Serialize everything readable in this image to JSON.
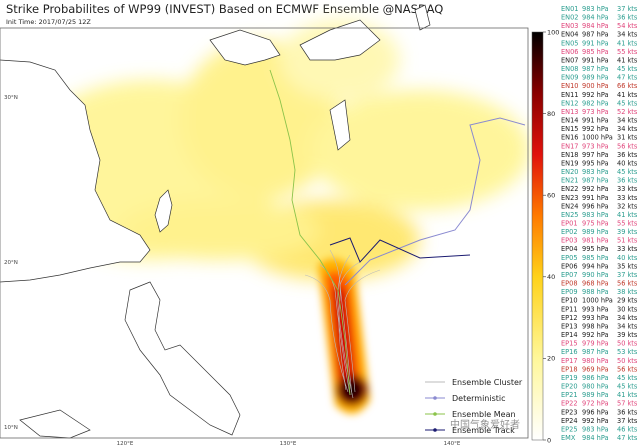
{
  "header": {
    "title": "Strike Probabilites of WP99 (INVEST) Based on ECMWF Ensemble @NASDAQ",
    "subtitle": "Init Time: 2017/07/25 12Z"
  },
  "map": {
    "lat_labels": [
      "30°N",
      "20°N",
      "10°N"
    ],
    "lon_labels": [
      "120°E",
      "130°E",
      "140°E"
    ]
  },
  "colorbar": {
    "range": [
      0,
      100
    ],
    "ticks": [
      0,
      20,
      40,
      60,
      80,
      100
    ]
  },
  "legend": [
    "Ensemble Cluster",
    "Deterministic",
    "Ensemble Mean",
    "Ensemble Track"
  ],
  "watermark": "中国气象爱好者",
  "members": [
    {
      "name": "EN01",
      "pressure": "983 hPa",
      "wind": "37 kts",
      "color": "#2a9d8f"
    },
    {
      "name": "EN02",
      "pressure": "984 hPa",
      "wind": "36 kts",
      "color": "#2a9d8f"
    },
    {
      "name": "EN03",
      "pressure": "984 hPa",
      "wind": "54 kts",
      "color": "#e0457b"
    },
    {
      "name": "EN04",
      "pressure": "987 hPa",
      "wind": "34 kts",
      "color": "#222222"
    },
    {
      "name": "EN05",
      "pressure": "991 hPa",
      "wind": "41 kts",
      "color": "#2a9d8f"
    },
    {
      "name": "EN06",
      "pressure": "985 hPa",
      "wind": "55 kts",
      "color": "#e0457b"
    },
    {
      "name": "EN07",
      "pressure": "991 hPa",
      "wind": "41 kts",
      "color": "#222222"
    },
    {
      "name": "EN08",
      "pressure": "987 hPa",
      "wind": "45 kts",
      "color": "#2a9d8f"
    },
    {
      "name": "EN09",
      "pressure": "989 hPa",
      "wind": "47 kts",
      "color": "#2a9d8f"
    },
    {
      "name": "EN10",
      "pressure": "900 hPa",
      "wind": "66 kts",
      "color": "#c0392b"
    },
    {
      "name": "EN11",
      "pressure": "992 hPa",
      "wind": "41 kts",
      "color": "#222222"
    },
    {
      "name": "EN12",
      "pressure": "982 hPa",
      "wind": "45 kts",
      "color": "#2a9d8f"
    },
    {
      "name": "EN13",
      "pressure": "973 hPa",
      "wind": "52 kts",
      "color": "#e0457b"
    },
    {
      "name": "EN14",
      "pressure": "991 hPa",
      "wind": "34 kts",
      "color": "#222222"
    },
    {
      "name": "EN15",
      "pressure": "992 hPa",
      "wind": "34 kts",
      "color": "#222222"
    },
    {
      "name": "EN16",
      "pressure": "1000 hPa",
      "wind": "31 kts",
      "color": "#222222"
    },
    {
      "name": "EN17",
      "pressure": "973 hPa",
      "wind": "56 kts",
      "color": "#e0457b"
    },
    {
      "name": "EN18",
      "pressure": "997 hPa",
      "wind": "36 kts",
      "color": "#222222"
    },
    {
      "name": "EN19",
      "pressure": "995 hPa",
      "wind": "40 kts",
      "color": "#222222"
    },
    {
      "name": "EN20",
      "pressure": "983 hPa",
      "wind": "45 kts",
      "color": "#2a9d8f"
    },
    {
      "name": "EN21",
      "pressure": "987 hPa",
      "wind": "36 kts",
      "color": "#2a9d8f"
    },
    {
      "name": "EN22",
      "pressure": "992 hPa",
      "wind": "33 kts",
      "color": "#222222"
    },
    {
      "name": "EN23",
      "pressure": "991 hPa",
      "wind": "33 kts",
      "color": "#222222"
    },
    {
      "name": "EN24",
      "pressure": "996 hPa",
      "wind": "32 kts",
      "color": "#222222"
    },
    {
      "name": "EN25",
      "pressure": "983 hPa",
      "wind": "41 kts",
      "color": "#2a9d8f"
    },
    {
      "name": "EP01",
      "pressure": "975 hPa",
      "wind": "55 kts",
      "color": "#e0457b"
    },
    {
      "name": "EP02",
      "pressure": "989 hPa",
      "wind": "39 kts",
      "color": "#2a9d8f"
    },
    {
      "name": "EP03",
      "pressure": "981 hPa",
      "wind": "51 kts",
      "color": "#e0457b"
    },
    {
      "name": "EP04",
      "pressure": "995 hPa",
      "wind": "33 kts",
      "color": "#222222"
    },
    {
      "name": "EP05",
      "pressure": "985 hPa",
      "wind": "40 kts",
      "color": "#2a9d8f"
    },
    {
      "name": "EP06",
      "pressure": "994 hPa",
      "wind": "35 kts",
      "color": "#222222"
    },
    {
      "name": "EP07",
      "pressure": "990 hPa",
      "wind": "37 kts",
      "color": "#2a9d8f"
    },
    {
      "name": "EP08",
      "pressure": "968 hPa",
      "wind": "56 kts",
      "color": "#c0392b"
    },
    {
      "name": "EP09",
      "pressure": "988 hPa",
      "wind": "38 kts",
      "color": "#2a9d8f"
    },
    {
      "name": "EP10",
      "pressure": "1000 hPa",
      "wind": "29 kts",
      "color": "#222222"
    },
    {
      "name": "EP11",
      "pressure": "993 hPa",
      "wind": "30 kts",
      "color": "#222222"
    },
    {
      "name": "EP12",
      "pressure": "993 hPa",
      "wind": "34 kts",
      "color": "#222222"
    },
    {
      "name": "EP13",
      "pressure": "998 hPa",
      "wind": "34 kts",
      "color": "#222222"
    },
    {
      "name": "EP14",
      "pressure": "992 hPa",
      "wind": "39 kts",
      "color": "#222222"
    },
    {
      "name": "EP15",
      "pressure": "979 hPa",
      "wind": "50 kts",
      "color": "#e0457b"
    },
    {
      "name": "EP16",
      "pressure": "987 hPa",
      "wind": "53 kts",
      "color": "#2a9d8f"
    },
    {
      "name": "EP17",
      "pressure": "980 hPa",
      "wind": "50 kts",
      "color": "#e0457b"
    },
    {
      "name": "EP18",
      "pressure": "969 hPa",
      "wind": "56 kts",
      "color": "#c0392b"
    },
    {
      "name": "EP19",
      "pressure": "986 hPa",
      "wind": "45 kts",
      "color": "#2a9d8f"
    },
    {
      "name": "EP20",
      "pressure": "980 hPa",
      "wind": "45 kts",
      "color": "#2a9d8f"
    },
    {
      "name": "EP21",
      "pressure": "989 hPa",
      "wind": "41 kts",
      "color": "#2a9d8f"
    },
    {
      "name": "EP22",
      "pressure": "972 hPa",
      "wind": "57 kts",
      "color": "#e0457b"
    },
    {
      "name": "EP23",
      "pressure": "996 hPa",
      "wind": "36 kts",
      "color": "#222222"
    },
    {
      "name": "EP24",
      "pressure": "992 hPa",
      "wind": "37 kts",
      "color": "#222222"
    },
    {
      "name": "EP25",
      "pressure": "983 hPa",
      "wind": "46 kts",
      "color": "#2a9d8f"
    },
    {
      "name": "EMX",
      "pressure": "984 hPa",
      "wind": "47 kts",
      "color": "#2a9d8f"
    }
  ]
}
